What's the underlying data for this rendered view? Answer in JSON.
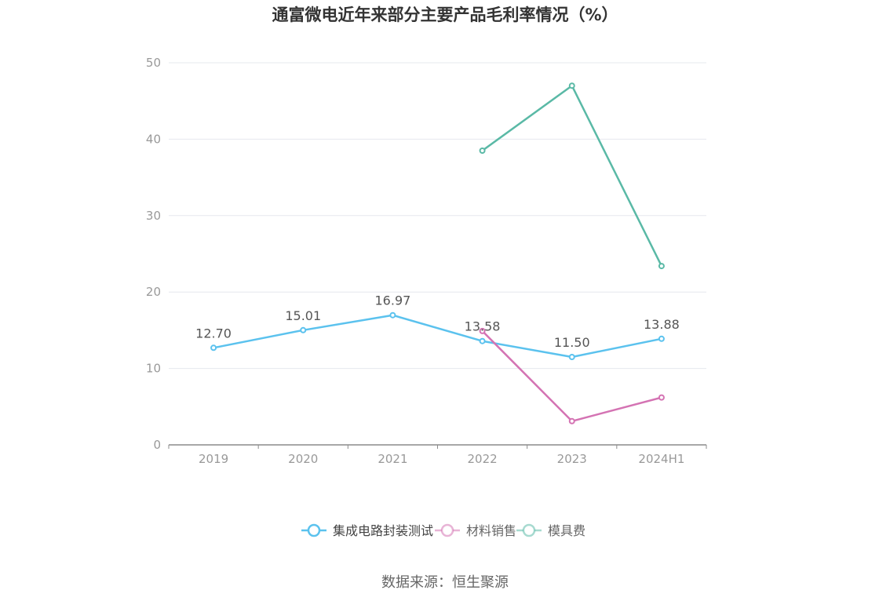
{
  "chart_data": {
    "type": "line",
    "title": "通富微电近年来部分主要产品毛利率情况（%）",
    "categories": [
      "2019",
      "2020",
      "2021",
      "2022",
      "2023",
      "2024H1"
    ],
    "ylim": [
      0,
      50
    ],
    "yticks": [
      0,
      10,
      20,
      30,
      40,
      50
    ],
    "grid": true,
    "legend_position": "bottom",
    "series": [
      {
        "name": "集成电路封装测试",
        "color": "#5BC2EE",
        "values": [
          12.7,
          15.01,
          16.97,
          13.58,
          11.5,
          13.88
        ],
        "labels": [
          "12.70",
          "15.01",
          "16.97",
          "13.58",
          "11.50",
          "13.88"
        ]
      },
      {
        "name": "材料销售",
        "color": "#D473B3",
        "values": [
          null,
          null,
          null,
          14.9,
          3.1,
          6.2
        ]
      },
      {
        "name": "模具费",
        "color": "#5AB9A6",
        "values": [
          null,
          null,
          null,
          38.5,
          47.0,
          23.4
        ]
      }
    ]
  },
  "source": "数据来源：恒生聚源"
}
